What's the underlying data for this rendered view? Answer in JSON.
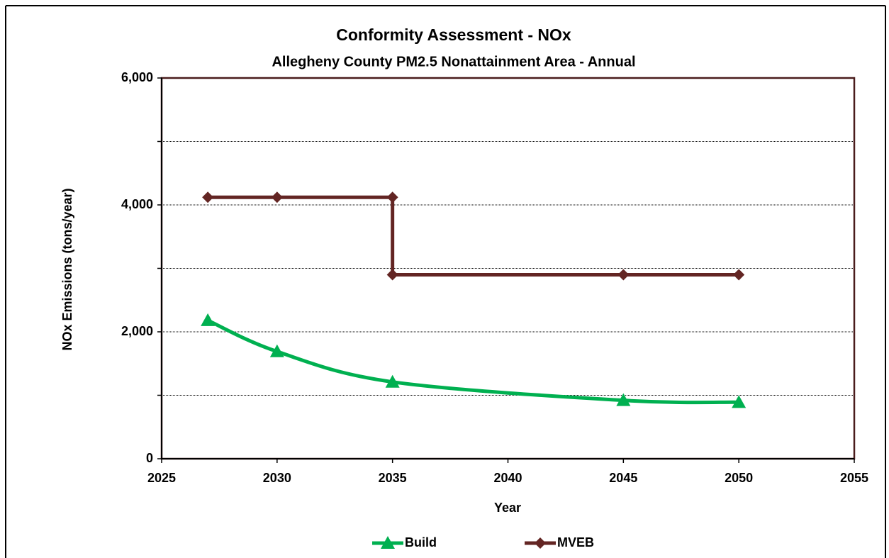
{
  "chart_data": {
    "type": "line",
    "title": "Conformity Assessment - NOx",
    "subtitle": "Allegheny County  PM2.5 Nonattainment Area - Annual",
    "xlabel": "Year",
    "ylabel": "NOx Emissions (tons/year)",
    "xlim": [
      2025,
      2055
    ],
    "xticks": [
      2025,
      2030,
      2035,
      2040,
      2045,
      2050,
      2055
    ],
    "ylim": [
      0,
      6000
    ],
    "yticks": [
      0,
      {
        "value": 2000,
        "label": "2,000"
      },
      {
        "value": 4000,
        "label": "4,000"
      },
      {
        "value": 6000,
        "label": "6,000"
      }
    ],
    "yticks_minor": [
      1000,
      3000,
      5000
    ],
    "grid": true,
    "legend": "bottom",
    "series": [
      {
        "name": "Build",
        "color": "#00b050",
        "marker": "triangle",
        "smooth": true,
        "x": [
          2027,
          2030,
          2035,
          2045,
          2050
        ],
        "values": [
          2180,
          1690,
          1210,
          920,
          890
        ]
      },
      {
        "name": "MVEB",
        "color": "#632523",
        "marker": "diamond",
        "smooth": false,
        "x": [
          2027,
          2030,
          2035,
          2035,
          2045,
          2050
        ],
        "values": [
          4120,
          4120,
          4120,
          2900,
          2900,
          2900
        ]
      }
    ]
  }
}
